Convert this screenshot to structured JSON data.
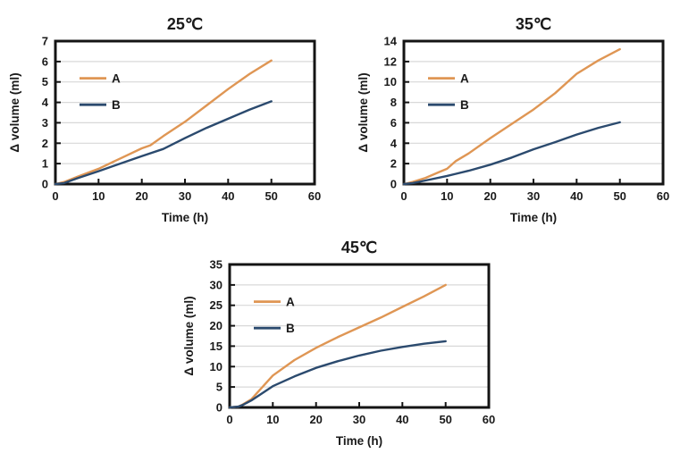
{
  "colors": {
    "series_a": "#DF9654",
    "series_b": "#2B4A6E",
    "grid": "#D8D8D8",
    "axis": "#141414",
    "text": "#1A1A1A",
    "background": "#FFFFFF"
  },
  "legend": {
    "a_label": "A",
    "b_label": "B"
  },
  "chart_data": [
    {
      "type": "line",
      "title": "25℃",
      "xlabel": "Time (h)",
      "ylabel": "Δ volume (ml)",
      "xlim": [
        0,
        60
      ],
      "xstep": 10,
      "ylim": [
        0,
        7
      ],
      "ystep": 1,
      "grid": "horizontal",
      "legend_position": "upper-left",
      "series": [
        {
          "name": "A",
          "color": "#DF9654",
          "x": [
            0,
            2,
            5,
            10,
            15,
            20,
            22,
            25,
            30,
            35,
            40,
            45,
            50
          ],
          "y": [
            0,
            0.1,
            0.35,
            0.75,
            1.25,
            1.75,
            1.9,
            2.35,
            3.05,
            3.85,
            4.65,
            5.4,
            6.05
          ]
        },
        {
          "name": "B",
          "color": "#2B4A6E",
          "x": [
            0,
            2,
            5,
            10,
            15,
            20,
            25,
            30,
            35,
            40,
            45,
            50
          ],
          "y": [
            0,
            0.05,
            0.28,
            0.63,
            1.0,
            1.37,
            1.72,
            2.25,
            2.75,
            3.2,
            3.65,
            4.05
          ]
        }
      ]
    },
    {
      "type": "line",
      "title": "35℃",
      "xlabel": "Time (h)",
      "ylabel": "Δ volume (ml)",
      "xlim": [
        0,
        60
      ],
      "xstep": 10,
      "ylim": [
        0,
        14
      ],
      "ystep": 2,
      "grid": "horizontal",
      "legend_position": "upper-left",
      "series": [
        {
          "name": "A",
          "color": "#DF9654",
          "x": [
            0,
            2,
            5,
            8,
            10,
            12,
            15,
            20,
            25,
            30,
            35,
            40,
            45,
            50
          ],
          "y": [
            0,
            0.2,
            0.6,
            1.15,
            1.5,
            2.25,
            3.0,
            4.5,
            5.9,
            7.3,
            8.9,
            10.8,
            12.1,
            13.2
          ]
        },
        {
          "name": "B",
          "color": "#2B4A6E",
          "x": [
            0,
            2,
            5,
            10,
            15,
            20,
            25,
            30,
            35,
            40,
            45,
            50
          ],
          "y": [
            0,
            0.1,
            0.35,
            0.8,
            1.3,
            1.9,
            2.6,
            3.4,
            4.1,
            4.85,
            5.5,
            6.05
          ]
        }
      ]
    },
    {
      "type": "line",
      "title": "45℃",
      "xlabel": "Time (h)",
      "ylabel": "Δ volume (ml)",
      "xlim": [
        0,
        60
      ],
      "xstep": 10,
      "ylim": [
        0,
        35
      ],
      "ystep": 5,
      "grid": "horizontal",
      "legend_position": "upper-left",
      "series": [
        {
          "name": "A",
          "color": "#DF9654",
          "x": [
            0,
            2,
            3,
            5,
            10,
            15,
            20,
            25,
            30,
            35,
            40,
            45,
            50
          ],
          "y": [
            0,
            0.2,
            0.7,
            2.0,
            7.8,
            11.6,
            14.6,
            17.2,
            19.6,
            22.0,
            24.6,
            27.2,
            30.0
          ]
        },
        {
          "name": "B",
          "color": "#2B4A6E",
          "x": [
            0,
            2,
            3,
            5,
            10,
            15,
            20,
            25,
            30,
            35,
            40,
            45,
            50
          ],
          "y": [
            0,
            0.2,
            0.6,
            1.7,
            5.2,
            7.6,
            9.7,
            11.3,
            12.7,
            13.9,
            14.8,
            15.6,
            16.2
          ]
        }
      ]
    }
  ]
}
